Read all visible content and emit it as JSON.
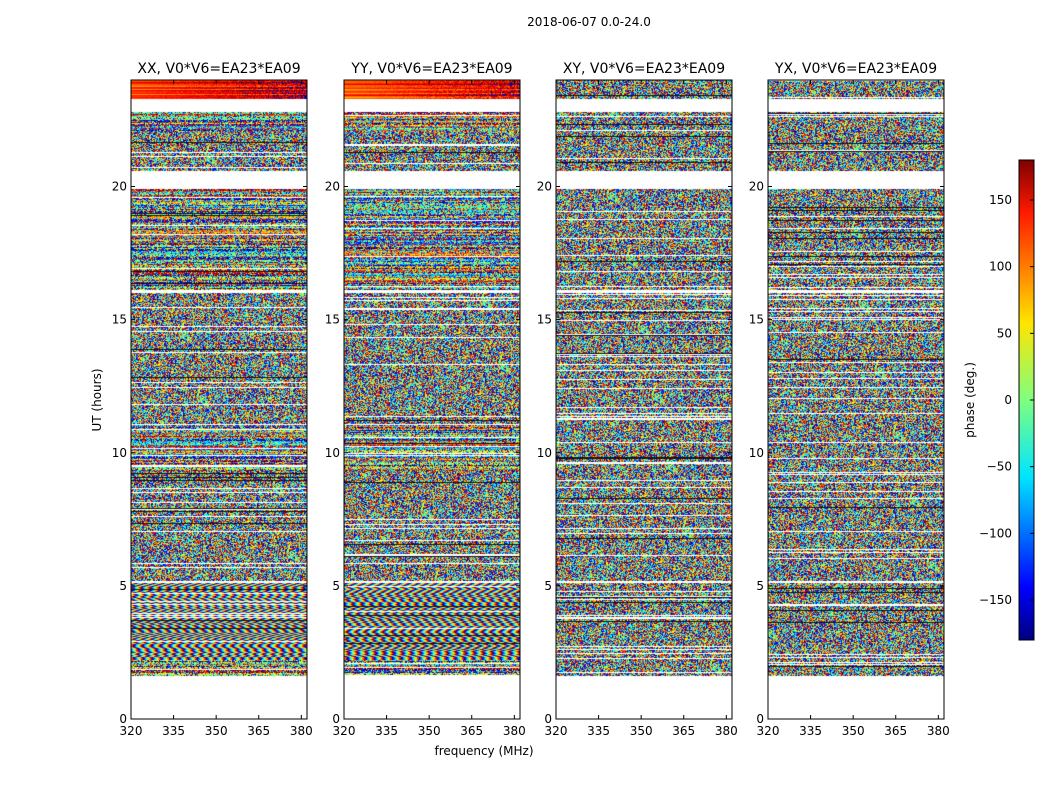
{
  "chart_data": {
    "type": "heatmap",
    "suptitle": "2018-06-07 0.0-24.0",
    "xlabel": "frequency (MHz)",
    "ylabel": "UT (hours)",
    "xlim": [
      320,
      382
    ],
    "ylim": [
      0,
      24
    ],
    "xticks": [
      "320",
      "335",
      "350",
      "365",
      "380"
    ],
    "yticks": [
      "0",
      "5",
      "10",
      "15",
      "20"
    ],
    "panels": [
      {
        "title": "XX, V0*V6=EA23*EA09"
      },
      {
        "title": "YY, V0*V6=EA23*EA09"
      },
      {
        "title": "XY, V0*V6=EA23*EA09"
      },
      {
        "title": "YX, V0*V6=EA23*EA09"
      }
    ],
    "colorbar": {
      "label": "phase (deg.)",
      "range": [
        -180,
        180
      ],
      "ticks": [
        "−150",
        "−100",
        "−50",
        "0",
        "50",
        "100",
        "150"
      ],
      "colormap": "jet"
    },
    "data_coverage_hours": [
      1.6,
      24
    ],
    "bands": [
      {
        "from": 23.3,
        "to": 24.0,
        "mode": "coherent"
      },
      {
        "from": 22.1,
        "to": 22.8,
        "mode": "mixed"
      },
      {
        "from": 20.6,
        "to": 22.1,
        "mode": "noise"
      },
      {
        "from": 16.1,
        "to": 19.9,
        "mode": "mixed"
      },
      {
        "from": 11.0,
        "to": 16.0,
        "mode": "noise"
      },
      {
        "from": 10.3,
        "to": 11.0,
        "mode": "mixed"
      },
      {
        "from": 9.3,
        "to": 10.3,
        "mode": "mixed"
      },
      {
        "from": 6.6,
        "to": 9.3,
        "mode": "noise"
      },
      {
        "from": 5.2,
        "to": 6.6,
        "mode": "noise"
      },
      {
        "from": 3.4,
        "to": 5.1,
        "mode": "fringe"
      },
      {
        "from": 2.2,
        "to": 3.4,
        "mode": "fringe"
      },
      {
        "from": 1.6,
        "to": 2.2,
        "mode": "mixed"
      }
    ]
  }
}
